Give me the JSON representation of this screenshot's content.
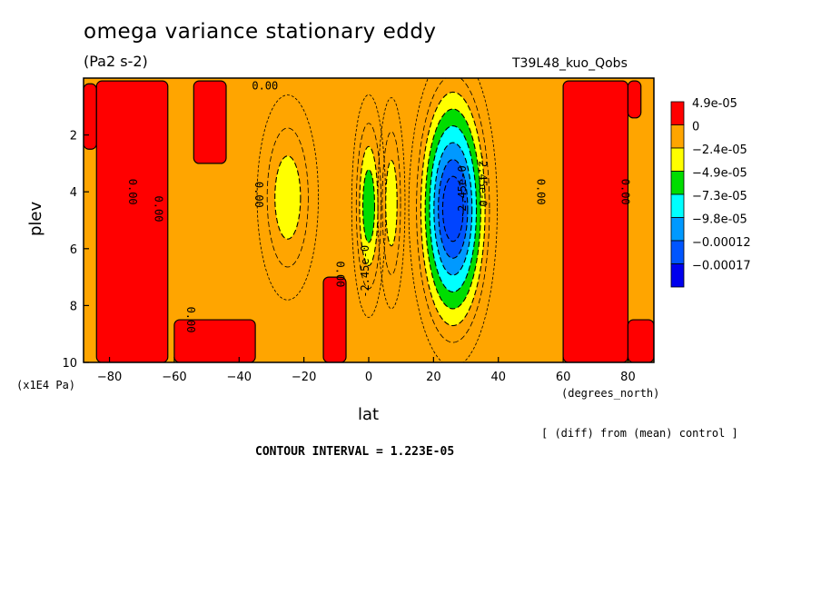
{
  "title": "omega variance stationary eddy",
  "units": "(Pa2 s-2)",
  "run_label": "T39L48_kuo_Qobs",
  "note": "[ (diff) from (mean) control ]",
  "contour_interval_text": "CONTOUR INTERVAL = 1.223E-05",
  "chart_data": {
    "type": "heatmap",
    "title": "omega variance stationary eddy",
    "xlabel": "lat",
    "ylabel": "plev",
    "x_units": "(degrees_north)",
    "y_units": "(x1E4 Pa)",
    "xlim": [
      -88,
      88
    ],
    "ylim": [
      10,
      0
    ],
    "x_ticks": [
      -80,
      -60,
      -40,
      -20,
      0,
      20,
      40,
      60,
      80
    ],
    "x_tick_labels": [
      "−80",
      "−60",
      "−40",
      "−20",
      "0",
      "20",
      "40",
      "60",
      "80"
    ],
    "y_ticks": [
      2,
      4,
      6,
      8,
      10
    ],
    "y_tick_labels": [
      "2",
      "4",
      "6",
      "8",
      "10"
    ],
    "contour_interval": 1.223e-05,
    "legend": {
      "position": "right",
      "levels": [
        "4.9e-05",
        "0",
        "−2.4e-05",
        "−4.9e-05",
        "−7.3e-05",
        "−9.8e-05",
        "−0.00012",
        "−0.00017"
      ],
      "colors": [
        "#ff0000",
        "#ffa500",
        "#ffff00",
        "#00dd00",
        "#00ffff",
        "#0099ff",
        "#0055ff",
        "#0000ee"
      ]
    },
    "colors": {
      "positive": "#ff0000",
      "zero_band": "#ffa500",
      "band1": "#ffff00",
      "band2": "#00dd00",
      "band3": "#00ffff",
      "band4": "#0099ff",
      "band5": "#0055ff"
    },
    "positive_regions": [
      {
        "lat_min": -88,
        "lat_max": -84,
        "plev_min": 0.2,
        "plev_max": 2.5
      },
      {
        "lat_min": -84,
        "lat_max": -62,
        "plev_min": 0.1,
        "plev_max": 10
      },
      {
        "lat_min": -54,
        "lat_max": -44,
        "plev_min": 0.1,
        "plev_max": 3.0
      },
      {
        "lat_min": -60,
        "lat_max": -35,
        "plev_min": 8.5,
        "plev_max": 10
      },
      {
        "lat_min": -14,
        "lat_max": -7,
        "plev_min": 7.0,
        "plev_max": 10
      },
      {
        "lat_min": 60,
        "lat_max": 80,
        "plev_min": 0.1,
        "plev_max": 10
      },
      {
        "lat_min": 80,
        "lat_max": 84,
        "plev_min": 0.1,
        "plev_max": 1.4
      },
      {
        "lat_min": 80,
        "lat_max": 88,
        "plev_min": 8.5,
        "plev_max": 10
      }
    ],
    "negative_centers": [
      {
        "lat": -25,
        "plev": 4.2,
        "lat_halfwidth": 9,
        "plev_halfwidth": 3.5,
        "depth": 2
      },
      {
        "lat": 0,
        "plev": 4.5,
        "lat_halfwidth": 5,
        "plev_halfwidth": 3.8,
        "depth": 3
      },
      {
        "lat": 7,
        "plev": 4.4,
        "lat_halfwidth": 4,
        "plev_halfwidth": 3.6,
        "depth": 2
      },
      {
        "lat": 26,
        "plev": 4.6,
        "lat_halfwidth": 13,
        "plev_halfwidth": 5.4,
        "depth": 7
      }
    ],
    "contour_labels": [
      {
        "text": "0.00",
        "lat": -32,
        "plev": 0.4,
        "rotate": 0
      },
      {
        "text": "0.00",
        "lat": -74,
        "plev": 4.0,
        "rotate": 90
      },
      {
        "text": "0.00",
        "lat": -66,
        "plev": 4.6,
        "rotate": 90
      },
      {
        "text": "0.00",
        "lat": -35,
        "plev": 4.1,
        "rotate": 90
      },
      {
        "text": "0.00",
        "lat": -10,
        "plev": 6.9,
        "rotate": 90
      },
      {
        "text": "0.00",
        "lat": -56,
        "plev": 8.5,
        "rotate": 90
      },
      {
        "text": "0.00",
        "lat": 52,
        "plev": 4.0,
        "rotate": 90
      },
      {
        "text": "0.00",
        "lat": 78,
        "plev": 4.0,
        "rotate": 90
      },
      {
        "text": "-2.45e-0",
        "lat": 0,
        "plev": 6.8,
        "rotate": -90
      },
      {
        "text": "-2.45e-0",
        "lat": 30,
        "plev": 4.0,
        "rotate": -90
      },
      {
        "text": "-2.45e-0",
        "lat": 34,
        "plev": 3.6,
        "rotate": 90
      }
    ]
  }
}
